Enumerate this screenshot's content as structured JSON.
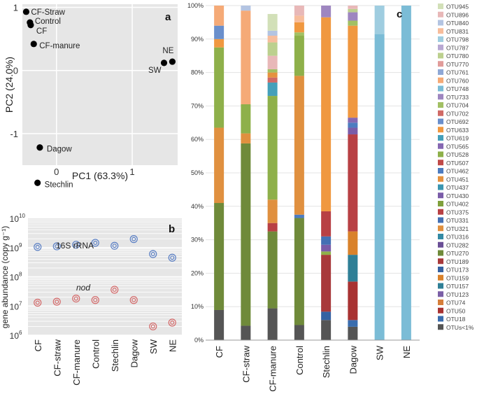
{
  "chart_data": [
    {
      "panel": "a",
      "type": "scatter",
      "xlabel": "PC1 (63.3%)",
      "ylabel": "PC2 (24.0%)",
      "xlim": [
        -0.45,
        1.6
      ],
      "ylim": [
        -1.5,
        1.05
      ],
      "xticks": [
        0,
        1
      ],
      "yticks": [
        1,
        0,
        -1
      ],
      "xtick_labels": [
        "0",
        "1"
      ],
      "ytick_labels": [
        "1",
        "0",
        "-1"
      ],
      "points": [
        {
          "label": "CF-Straw",
          "x": -0.4,
          "y": 0.93
        },
        {
          "label": "Control",
          "x": -0.35,
          "y": 0.76
        },
        {
          "label": "CF",
          "x": -0.34,
          "y": 0.72
        },
        {
          "label": "CF-manure",
          "x": -0.3,
          "y": 0.42
        },
        {
          "label": "SW",
          "x": 1.42,
          "y": 0.12
        },
        {
          "label": "NE",
          "x": 1.53,
          "y": 0.14
        },
        {
          "label": "Dagow",
          "x": -0.22,
          "y": -1.22
        },
        {
          "label": "Stechlin",
          "x": -0.25,
          "y": -1.78
        }
      ]
    },
    {
      "panel": "b",
      "type": "scatter",
      "ylabel": "gene abundance (copy g⁻¹)",
      "yscale": "log",
      "ylim": [
        1000000,
        10000000000
      ],
      "yticks": [
        "10",
        "10",
        "10",
        "10",
        "10"
      ],
      "ytick_exp": [
        "6",
        "7",
        "8",
        "9",
        "10"
      ],
      "categories": [
        "CF",
        "CF-straw",
        "CF-manure",
        "Control",
        "Stechlin",
        "Dagow",
        "SW",
        "NE"
      ],
      "series": [
        {
          "name": "16S rRNA",
          "color": "#5a7fc4",
          "values": [
            1050000000,
            1100000000,
            1250000000,
            1450000000,
            1150000000,
            1950000000,
            600000000,
            450000000
          ]
        },
        {
          "name": "nod",
          "color": "#d46a6a",
          "values": [
            13000000,
            14000000,
            18000000,
            16000000,
            36000000,
            16000000,
            2000000,
            2700000
          ]
        }
      ]
    },
    {
      "panel": "c",
      "type": "bar",
      "stacked": true,
      "ylim": [
        0,
        100
      ],
      "ytick_labels": [
        "0%",
        "10%",
        "20%",
        "30%",
        "40%",
        "50%",
        "60%",
        "70%",
        "80%",
        "90%",
        "100%"
      ],
      "categories": [
        "CF",
        "CF-straw",
        "CF-manure",
        "Control",
        "Stechlin",
        "Dagow",
        "SW",
        "NE"
      ],
      "legend_order": [
        "OTU945",
        "OTU896",
        "OTU840",
        "OTU831",
        "OTU798",
        "OTU787",
        "OTU780",
        "OTU770",
        "OTU761",
        "OTU760",
        "OTU748",
        "OTU733",
        "OTU704",
        "OTU702",
        "OTU692",
        "OTU633",
        "OTU619",
        "OTU565",
        "OTU528",
        "OTU507",
        "OTU462",
        "OTU451",
        "OTU437",
        "OTU430",
        "OTU402",
        "OTU375",
        "OTU331",
        "OTU321",
        "OTU316",
        "OTU282",
        "OTU270",
        "OTU189",
        "OTU173",
        "OTU159",
        "OTU157",
        "OTU123",
        "OTU74",
        "OTU50",
        "OTU18",
        "OTUs<1%"
      ],
      "colors": {
        "OTUs<1%": "#555555",
        "OTU18": "#3a6dae",
        "OTU50": "#a83232",
        "OTU74": "#d67e3a",
        "OTU123": "#7b5fa6",
        "OTU157": "#2f7f96",
        "OTU159": "#d9822b",
        "OTU173": "#3562a2",
        "OTU189": "#a8393b",
        "OTU270": "#6f8a3a",
        "OTU282": "#6a4f96",
        "OTU316": "#338aa4",
        "OTU321": "#e0903f",
        "OTU331": "#4470b4",
        "OTU375": "#b84044",
        "OTU402": "#80a03c",
        "OTU430": "#7a5ca8",
        "OTU437": "#3b96b0",
        "OTU451": "#e5923f",
        "OTU462": "#4d7cc0",
        "OTU507": "#c04a48",
        "OTU528": "#8eb04a",
        "OTU565": "#8668b2",
        "OTU619": "#45a0ba",
        "OTU633": "#f09840",
        "OTU692": "#6a8fcc",
        "OTU702": "#d06a66",
        "OTU704": "#a2c064",
        "OTU733": "#9e86c0",
        "OTU748": "#7bbcd6",
        "OTU760": "#f5aa77",
        "OTU761": "#8fa8d6",
        "OTU770": "#e19c9a",
        "OTU780": "#bcd08e",
        "OTU787": "#b8a8d2",
        "OTU798": "#9fcde0",
        "OTU831": "#f7bd9c",
        "OTU840": "#b3c4e2",
        "OTU896": "#e8b8b8",
        "OTU945": "#d2e0b8"
      },
      "stacks": [
        [
          [
            "OTUs<1%",
            9
          ],
          [
            "OTU270",
            32
          ],
          [
            "OTU321",
            22.5
          ],
          [
            "OTU528",
            24
          ],
          [
            "OTU633",
            2.5
          ],
          [
            "OTU692",
            4
          ],
          [
            "OTU760",
            6
          ]
        ],
        [
          [
            "OTUs<1%",
            4.3
          ],
          [
            "OTU270",
            54.5
          ],
          [
            "OTU321",
            3
          ],
          [
            "OTU528",
            8.7
          ],
          [
            "OTU760",
            28
          ],
          [
            "OTU840",
            1.5
          ]
        ],
        [
          [
            "OTUs<1%",
            9.5
          ],
          [
            "OTU270",
            23
          ],
          [
            "OTU375",
            2.5
          ],
          [
            "OTU321",
            7
          ],
          [
            "OTU528",
            31
          ],
          [
            "OTU619",
            4
          ],
          [
            "OTU702",
            1.5
          ],
          [
            "OTU451",
            1.5
          ],
          [
            "OTU704",
            1
          ],
          [
            "OTU896",
            4
          ],
          [
            "OTU780",
            4
          ],
          [
            "OTU831",
            2
          ],
          [
            "OTU840",
            1.5
          ],
          [
            "OTU945",
            5
          ]
        ],
        [
          [
            "OTUs<1%",
            4.5
          ],
          [
            "OTU270",
            32
          ],
          [
            "OTU462",
            1
          ],
          [
            "OTU321",
            41.5
          ],
          [
            "OTU528",
            12
          ],
          [
            "OTU704",
            1
          ],
          [
            "OTU633",
            3
          ],
          [
            "OTU831",
            2
          ],
          [
            "OTU896",
            3
          ]
        ],
        [
          [
            "OTUs<1%",
            6
          ],
          [
            "OTU173",
            2.5
          ],
          [
            "OTU189",
            17
          ],
          [
            "OTU528",
            1
          ],
          [
            "OTU430",
            2
          ],
          [
            "OTU331",
            2.5
          ],
          [
            "OTU375",
            7.5
          ],
          [
            "OTU633",
            58
          ],
          [
            "OTU733",
            3.5
          ]
        ],
        [
          [
            "OTUs<1%",
            4
          ],
          [
            "OTU18",
            2
          ],
          [
            "OTU50",
            11.5
          ],
          [
            "OTU157",
            8
          ],
          [
            "OTU159",
            7
          ],
          [
            "OTU375",
            29
          ],
          [
            "OTU430",
            2
          ],
          [
            "OTU462",
            1.5
          ],
          [
            "OTU565",
            1.5
          ],
          [
            "OTU633",
            27.5
          ],
          [
            "OTU704",
            1.5
          ],
          [
            "OTU733",
            2.5
          ],
          [
            "OTU780",
            1
          ],
          [
            "OTU896",
            1
          ]
        ],
        [
          [
            "OTU748",
            91.5
          ],
          [
            "OTU798",
            8.5
          ]
        ],
        [
          [
            "OTU748",
            100
          ]
        ]
      ]
    }
  ],
  "panels": {
    "a": {
      "label": "a"
    },
    "b": {
      "label": "b",
      "series_label_16s": "16S rRNA",
      "series_label_nod": "nod"
    },
    "c": {
      "label": "c"
    }
  }
}
